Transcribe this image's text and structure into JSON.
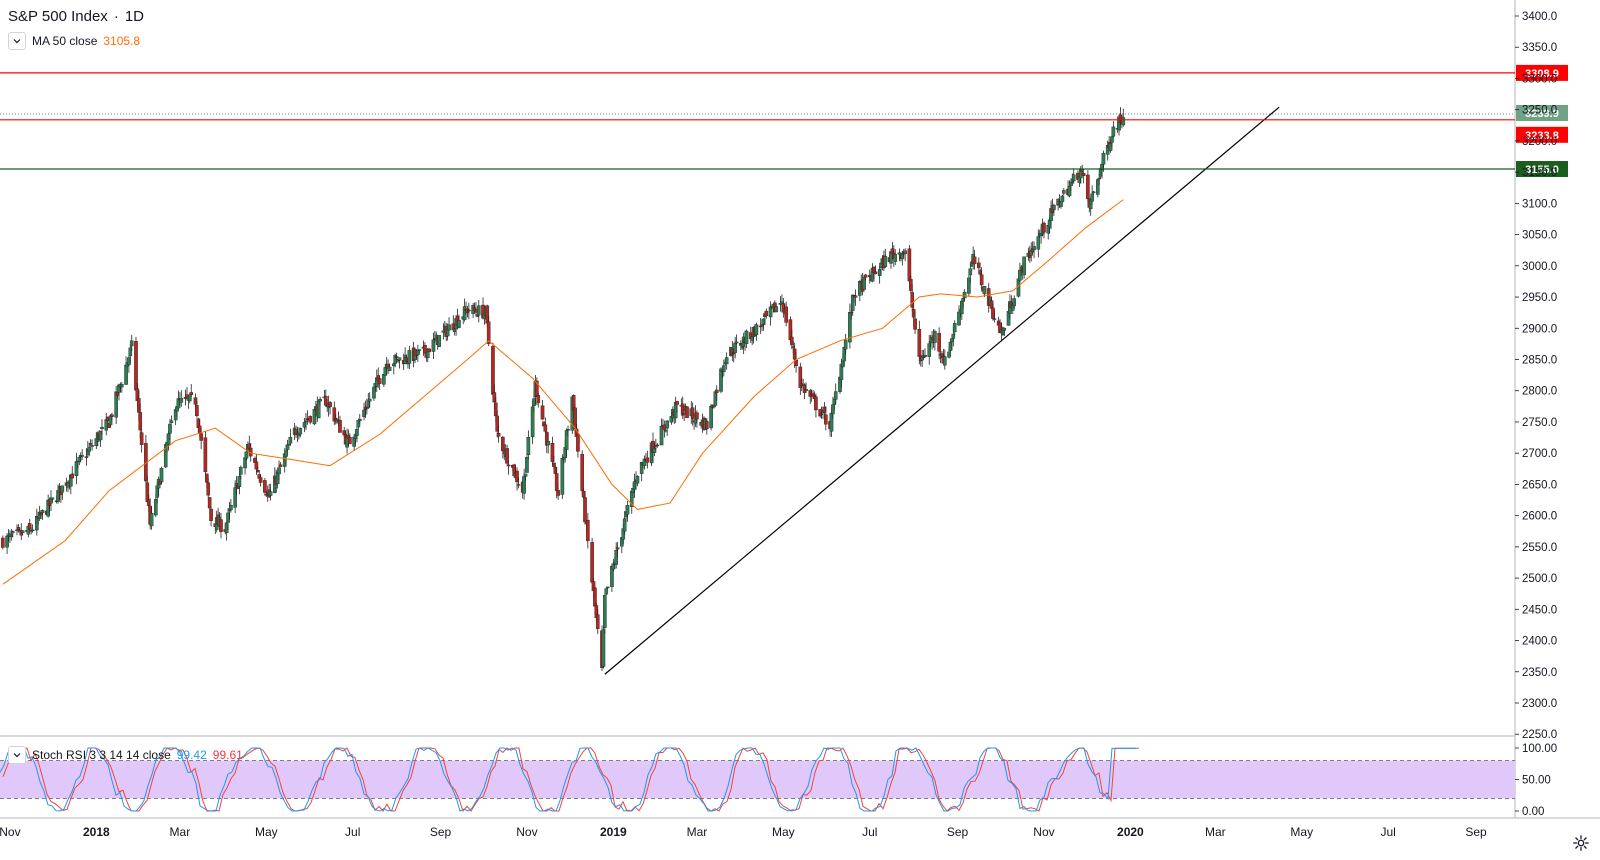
{
  "header": {
    "symbol": "S&P 500 Index",
    "separator": "·",
    "interval": "1D"
  },
  "ma": {
    "label": "MA 50 close",
    "value": "3105.8"
  },
  "rsi": {
    "label": "Stoch RSI 3 3 14 14 close",
    "k_value": "99.42",
    "d_value": "99.61"
  },
  "price_scale": {
    "ticks": [
      "3400.0",
      "3350.0",
      "3300.0",
      "3250.0",
      "3200.0",
      "3150.0",
      "3100.0",
      "3050.0",
      "3000.0",
      "2950.0",
      "2900.0",
      "2850.0",
      "2800.0",
      "2750.0",
      "2700.0",
      "2650.0",
      "2600.0",
      "2550.0",
      "2500.0",
      "2450.0",
      "2400.0",
      "2350.0",
      "2300.0",
      "2250.0"
    ]
  },
  "rsi_scale": {
    "ticks": [
      "100.00",
      "50.00",
      "0.00"
    ]
  },
  "time_axis": {
    "labels": [
      "Nov",
      "2018",
      "Mar",
      "May",
      "Jul",
      "Sep",
      "Nov",
      "2019",
      "Mar",
      "May",
      "Jul",
      "Sep",
      "Nov",
      "2020",
      "Mar",
      "May",
      "Jul",
      "Sep"
    ]
  },
  "colors": {
    "candle_up": "#2e7d55",
    "candle_down": "#b22822",
    "ma_line": "#ff6d00",
    "resistance": "#ff0000",
    "support": "#1b5e20",
    "last_price": "#6fa287",
    "rsi_band": "#e1c8fa",
    "rsi_k": "#2196f3",
    "rsi_d": "#f44336"
  },
  "chart_data": {
    "type": "candlestick",
    "title": "S&P 500 Index · 1D",
    "ylim": [
      2240,
      3420
    ],
    "xlabel": "",
    "ylabel": "",
    "horizontal_levels": [
      {
        "price": 3308.9,
        "label": "3308.9",
        "style": "red"
      },
      {
        "price": 3239.9,
        "label": "3239.9",
        "style": "last"
      },
      {
        "price": 3233.8,
        "label": "3233.8",
        "style": "red"
      },
      {
        "price": 3155.0,
        "label": "3155.0",
        "style": "green"
      }
    ],
    "trendline": {
      "from": [
        "2018-12-26",
        2346
      ],
      "to": [
        "2020-04-15",
        3254
      ]
    },
    "price_path": [
      [
        "2017-10-27",
        2560
      ],
      [
        "2017-11-15",
        2575
      ],
      [
        "2017-12-05",
        2635
      ],
      [
        "2017-12-20",
        2685
      ],
      [
        "2018-01-10",
        2750
      ],
      [
        "2018-01-26",
        2870
      ],
      [
        "2018-02-08",
        2585
      ],
      [
        "2018-02-26",
        2780
      ],
      [
        "2018-03-12",
        2785
      ],
      [
        "2018-03-23",
        2595
      ],
      [
        "2018-04-02",
        2580
      ],
      [
        "2018-04-18",
        2710
      ],
      [
        "2018-05-03",
        2630
      ],
      [
        "2018-05-21",
        2735
      ],
      [
        "2018-06-12",
        2785
      ],
      [
        "2018-06-28",
        2715
      ],
      [
        "2018-07-25",
        2845
      ],
      [
        "2018-08-20",
        2860
      ],
      [
        "2018-09-20",
        2930
      ],
      [
        "2018-10-03",
        2925
      ],
      [
        "2018-10-11",
        2730
      ],
      [
        "2018-10-29",
        2640
      ],
      [
        "2018-11-07",
        2810
      ],
      [
        "2018-11-23",
        2635
      ],
      [
        "2018-12-03",
        2790
      ],
      [
        "2018-12-10",
        2640
      ],
      [
        "2018-12-24",
        2350
      ],
      [
        "2018-12-26",
        2467
      ],
      [
        "2019-01-18",
        2670
      ],
      [
        "2019-02-15",
        2775
      ],
      [
        "2019-03-08",
        2745
      ],
      [
        "2019-03-21",
        2855
      ],
      [
        "2019-04-15",
        2905
      ],
      [
        "2019-04-30",
        2945
      ],
      [
        "2019-05-13",
        2812
      ],
      [
        "2019-06-03",
        2745
      ],
      [
        "2019-06-20",
        2955
      ],
      [
        "2019-07-15",
        3015
      ],
      [
        "2019-07-26",
        3025
      ],
      [
        "2019-08-05",
        2845
      ],
      [
        "2019-08-16",
        2890
      ],
      [
        "2019-08-23",
        2845
      ],
      [
        "2019-09-12",
        3010
      ],
      [
        "2019-10-02",
        2890
      ],
      [
        "2019-10-17",
        3000
      ],
      [
        "2019-11-08",
        3090
      ],
      [
        "2019-11-27",
        3155
      ],
      [
        "2019-12-03",
        3095
      ],
      [
        "2019-12-13",
        3170
      ],
      [
        "2019-12-20",
        3220
      ],
      [
        "2019-12-27",
        3240
      ]
    ],
    "ma_path": [
      [
        "2017-10-27",
        2490
      ],
      [
        "2017-12-10",
        2560
      ],
      [
        "2018-01-10",
        2640
      ],
      [
        "2018-02-26",
        2720
      ],
      [
        "2018-03-26",
        2740
      ],
      [
        "2018-04-20",
        2700
      ],
      [
        "2018-05-18",
        2690
      ],
      [
        "2018-06-15",
        2680
      ],
      [
        "2018-07-20",
        2730
      ],
      [
        "2018-08-20",
        2790
      ],
      [
        "2018-09-20",
        2850
      ],
      [
        "2018-10-05",
        2880
      ],
      [
        "2018-11-05",
        2820
      ],
      [
        "2018-12-05",
        2740
      ],
      [
        "2018-12-31",
        2650
      ],
      [
        "2019-01-18",
        2610
      ],
      [
        "2019-02-10",
        2620
      ],
      [
        "2019-03-05",
        2700
      ],
      [
        "2019-04-10",
        2790
      ],
      [
        "2019-05-10",
        2850
      ],
      [
        "2019-06-10",
        2880
      ],
      [
        "2019-07-10",
        2900
      ],
      [
        "2019-08-05",
        2950
      ],
      [
        "2019-08-20",
        2955
      ],
      [
        "2019-09-15",
        2950
      ],
      [
        "2019-10-10",
        2960
      ],
      [
        "2019-11-05",
        3010
      ],
      [
        "2019-11-30",
        3060
      ],
      [
        "2019-12-27",
        3106
      ]
    ]
  }
}
